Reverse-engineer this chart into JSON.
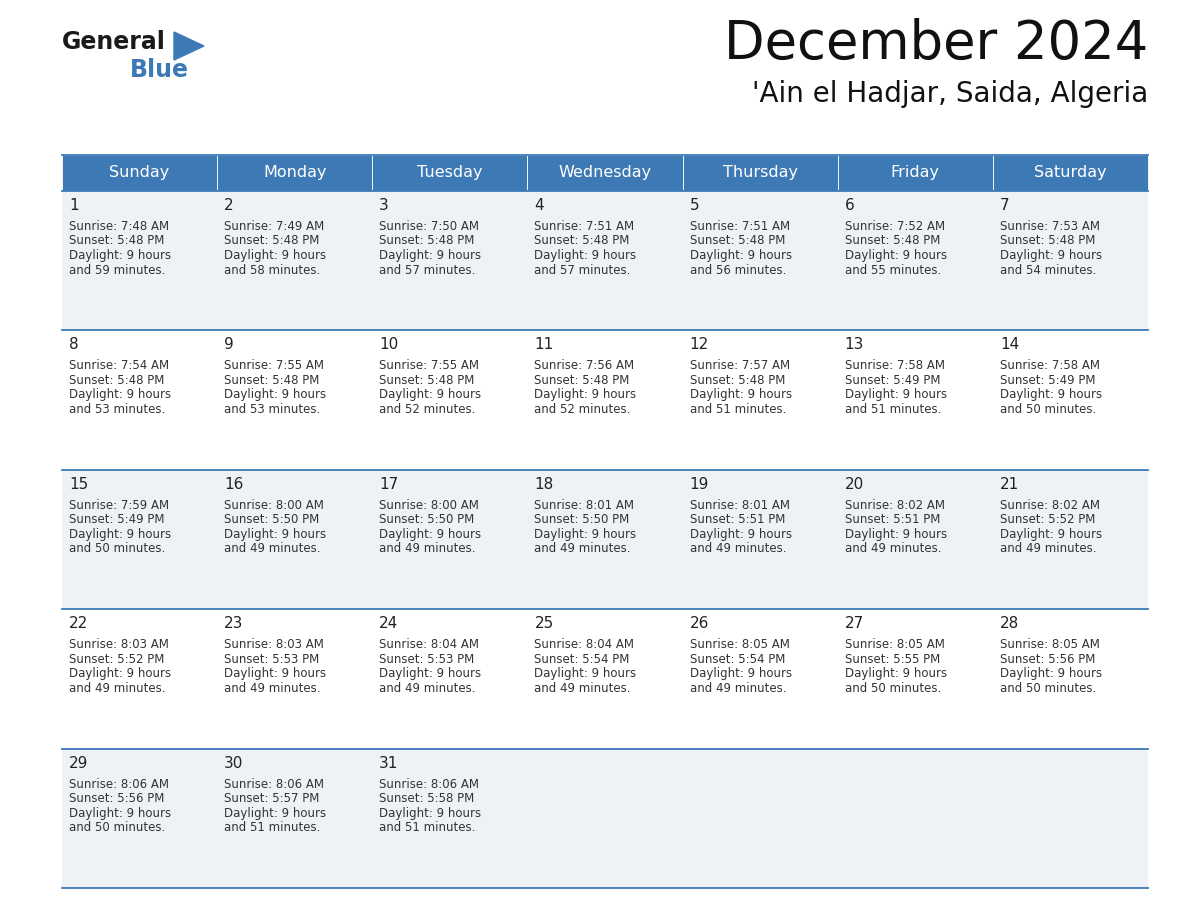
{
  "title": "December 2024",
  "subtitle": "'Ain el Hadjar, Saida, Algeria",
  "header_color": "#3d7ab5",
  "header_text_color": "#ffffff",
  "days_of_week": [
    "Sunday",
    "Monday",
    "Tuesday",
    "Wednesday",
    "Thursday",
    "Friday",
    "Saturday"
  ],
  "cell_bg_odd": "#eef2f7",
  "cell_bg_even": "#ffffff",
  "cell_border_color": "#3d7ab5",
  "day_number_color": "#222222",
  "cell_text_color": "#333333",
  "calendar_data": [
    [
      {
        "day": 1,
        "sunrise": "7:48 AM",
        "sunset": "5:48 PM",
        "daylight": "9 hours\nand 59 minutes."
      },
      {
        "day": 2,
        "sunrise": "7:49 AM",
        "sunset": "5:48 PM",
        "daylight": "9 hours\nand 58 minutes."
      },
      {
        "day": 3,
        "sunrise": "7:50 AM",
        "sunset": "5:48 PM",
        "daylight": "9 hours\nand 57 minutes."
      },
      {
        "day": 4,
        "sunrise": "7:51 AM",
        "sunset": "5:48 PM",
        "daylight": "9 hours\nand 57 minutes."
      },
      {
        "day": 5,
        "sunrise": "7:51 AM",
        "sunset": "5:48 PM",
        "daylight": "9 hours\nand 56 minutes."
      },
      {
        "day": 6,
        "sunrise": "7:52 AM",
        "sunset": "5:48 PM",
        "daylight": "9 hours\nand 55 minutes."
      },
      {
        "day": 7,
        "sunrise": "7:53 AM",
        "sunset": "5:48 PM",
        "daylight": "9 hours\nand 54 minutes."
      }
    ],
    [
      {
        "day": 8,
        "sunrise": "7:54 AM",
        "sunset": "5:48 PM",
        "daylight": "9 hours\nand 53 minutes."
      },
      {
        "day": 9,
        "sunrise": "7:55 AM",
        "sunset": "5:48 PM",
        "daylight": "9 hours\nand 53 minutes."
      },
      {
        "day": 10,
        "sunrise": "7:55 AM",
        "sunset": "5:48 PM",
        "daylight": "9 hours\nand 52 minutes."
      },
      {
        "day": 11,
        "sunrise": "7:56 AM",
        "sunset": "5:48 PM",
        "daylight": "9 hours\nand 52 minutes."
      },
      {
        "day": 12,
        "sunrise": "7:57 AM",
        "sunset": "5:48 PM",
        "daylight": "9 hours\nand 51 minutes."
      },
      {
        "day": 13,
        "sunrise": "7:58 AM",
        "sunset": "5:49 PM",
        "daylight": "9 hours\nand 51 minutes."
      },
      {
        "day": 14,
        "sunrise": "7:58 AM",
        "sunset": "5:49 PM",
        "daylight": "9 hours\nand 50 minutes."
      }
    ],
    [
      {
        "day": 15,
        "sunrise": "7:59 AM",
        "sunset": "5:49 PM",
        "daylight": "9 hours\nand 50 minutes."
      },
      {
        "day": 16,
        "sunrise": "8:00 AM",
        "sunset": "5:50 PM",
        "daylight": "9 hours\nand 49 minutes."
      },
      {
        "day": 17,
        "sunrise": "8:00 AM",
        "sunset": "5:50 PM",
        "daylight": "9 hours\nand 49 minutes."
      },
      {
        "day": 18,
        "sunrise": "8:01 AM",
        "sunset": "5:50 PM",
        "daylight": "9 hours\nand 49 minutes."
      },
      {
        "day": 19,
        "sunrise": "8:01 AM",
        "sunset": "5:51 PM",
        "daylight": "9 hours\nand 49 minutes."
      },
      {
        "day": 20,
        "sunrise": "8:02 AM",
        "sunset": "5:51 PM",
        "daylight": "9 hours\nand 49 minutes."
      },
      {
        "day": 21,
        "sunrise": "8:02 AM",
        "sunset": "5:52 PM",
        "daylight": "9 hours\nand 49 minutes."
      }
    ],
    [
      {
        "day": 22,
        "sunrise": "8:03 AM",
        "sunset": "5:52 PM",
        "daylight": "9 hours\nand 49 minutes."
      },
      {
        "day": 23,
        "sunrise": "8:03 AM",
        "sunset": "5:53 PM",
        "daylight": "9 hours\nand 49 minutes."
      },
      {
        "day": 24,
        "sunrise": "8:04 AM",
        "sunset": "5:53 PM",
        "daylight": "9 hours\nand 49 minutes."
      },
      {
        "day": 25,
        "sunrise": "8:04 AM",
        "sunset": "5:54 PM",
        "daylight": "9 hours\nand 49 minutes."
      },
      {
        "day": 26,
        "sunrise": "8:05 AM",
        "sunset": "5:54 PM",
        "daylight": "9 hours\nand 49 minutes."
      },
      {
        "day": 27,
        "sunrise": "8:05 AM",
        "sunset": "5:55 PM",
        "daylight": "9 hours\nand 50 minutes."
      },
      {
        "day": 28,
        "sunrise": "8:05 AM",
        "sunset": "5:56 PM",
        "daylight": "9 hours\nand 50 minutes."
      }
    ],
    [
      {
        "day": 29,
        "sunrise": "8:06 AM",
        "sunset": "5:56 PM",
        "daylight": "9 hours\nand 50 minutes."
      },
      {
        "day": 30,
        "sunrise": "8:06 AM",
        "sunset": "5:57 PM",
        "daylight": "9 hours\nand 51 minutes."
      },
      {
        "day": 31,
        "sunrise": "8:06 AM",
        "sunset": "5:58 PM",
        "daylight": "9 hours\nand 51 minutes."
      },
      null,
      null,
      null,
      null
    ]
  ],
  "logo_text_general": "General",
  "logo_text_blue": "Blue",
  "logo_triangle_color": "#3d7ab5",
  "logo_general_color": "#1a1a1a"
}
